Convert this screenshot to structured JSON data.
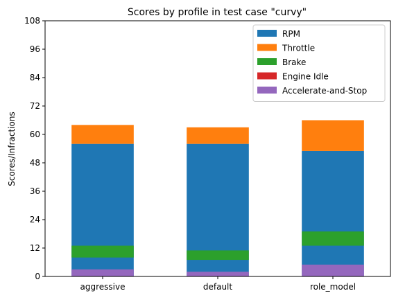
{
  "chart_data": {
    "type": "bar",
    "stacked": true,
    "title": "Scores by profile in test case \"curvy\"",
    "xlabel": "",
    "ylabel": "Scores/Infractions",
    "categories": [
      "aggressive",
      "default",
      "role_model"
    ],
    "ylim": [
      0,
      108
    ],
    "yticks": [
      0,
      12,
      24,
      36,
      48,
      60,
      72,
      84,
      96,
      108
    ],
    "grid": false,
    "legend_position": "top-right",
    "series": [
      {
        "name": "RPM",
        "color": "#1f77b4",
        "bottom": [
          0,
          0,
          0
        ],
        "top": [
          56,
          56,
          53
        ]
      },
      {
        "name": "Throttle",
        "color": "#ff7f0e",
        "bottom": [
          56,
          56,
          53
        ],
        "top": [
          64,
          63,
          66
        ]
      },
      {
        "name": "Brake",
        "color": "#2ca02c",
        "bottom": [
          8,
          7,
          13
        ],
        "top": [
          13,
          11,
          19
        ]
      },
      {
        "name": "Engine Idle",
        "color": "#d62728",
        "bottom": [
          0,
          0,
          0
        ],
        "top": [
          0,
          0,
          0
        ]
      },
      {
        "name": "Accelerate-and-Stop",
        "color": "#9467bd",
        "bottom": [
          0,
          0,
          0
        ],
        "top": [
          3,
          2,
          5
        ]
      }
    ]
  }
}
